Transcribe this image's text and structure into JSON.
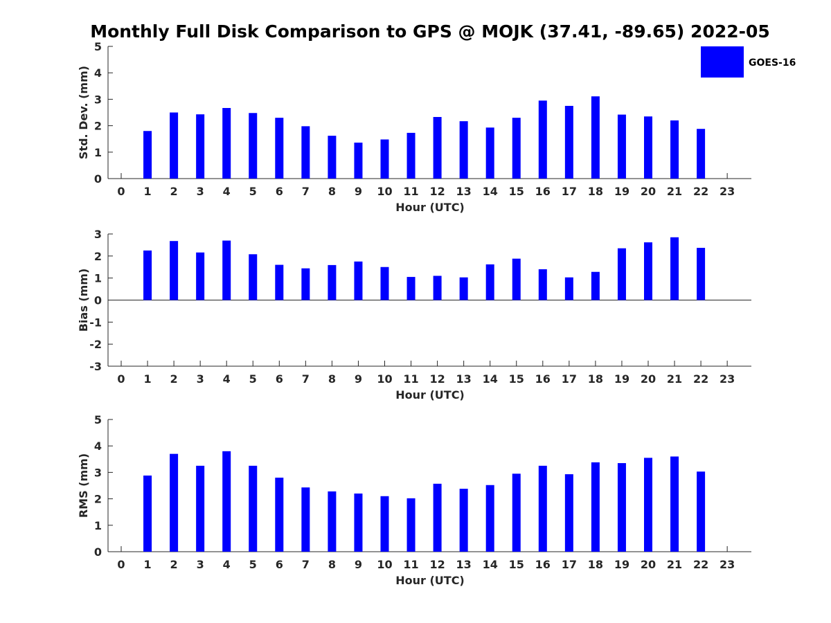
{
  "figure": {
    "title": "Monthly Full Disk Comparison to GPS @ MOJK (37.41, -89.65) 2022-05"
  },
  "legend": {
    "label": "GOES-16",
    "color": "#0000ff",
    "placement": "top-right"
  },
  "chart_data": [
    {
      "type": "bar",
      "title": "",
      "xlabel": "Hour (UTC)",
      "ylabel": "Std. Dev. (mm)",
      "categories": [
        "0",
        "1",
        "2",
        "3",
        "4",
        "5",
        "6",
        "7",
        "8",
        "9",
        "10",
        "11",
        "12",
        "13",
        "14",
        "15",
        "16",
        "17",
        "18",
        "19",
        "20",
        "21",
        "22",
        "23"
      ],
      "ylim": [
        0,
        5
      ],
      "yticks": [
        0,
        1,
        2,
        3,
        4,
        5
      ],
      "series": [
        {
          "name": "GOES-16",
          "color": "#0000ff",
          "values": [
            null,
            1.8,
            2.5,
            2.43,
            2.67,
            2.48,
            2.3,
            1.98,
            1.62,
            1.36,
            1.48,
            1.73,
            2.33,
            2.17,
            1.93,
            2.3,
            2.95,
            2.75,
            3.11,
            2.42,
            2.35,
            2.2,
            1.88,
            null
          ]
        }
      ],
      "grid": false
    },
    {
      "type": "bar",
      "title": "",
      "xlabel": "Hour (UTC)",
      "ylabel": "Bias (mm)",
      "categories": [
        "0",
        "1",
        "2",
        "3",
        "4",
        "5",
        "6",
        "7",
        "8",
        "9",
        "10",
        "11",
        "12",
        "13",
        "14",
        "15",
        "16",
        "17",
        "18",
        "19",
        "20",
        "21",
        "22",
        "23"
      ],
      "ylim": [
        -3,
        3
      ],
      "yticks": [
        -3,
        -2,
        -1,
        0,
        1,
        2,
        3
      ],
      "zero_line": true,
      "series": [
        {
          "name": "GOES-16",
          "color": "#0000ff",
          "values": [
            null,
            2.25,
            2.68,
            2.16,
            2.7,
            2.08,
            1.6,
            1.44,
            1.59,
            1.75,
            1.5,
            1.05,
            1.1,
            1.03,
            1.62,
            1.88,
            1.4,
            1.03,
            1.28,
            2.35,
            2.62,
            2.85,
            2.37,
            null
          ]
        }
      ],
      "grid": false
    },
    {
      "type": "bar",
      "title": "",
      "xlabel": "Hour (UTC)",
      "ylabel": "RMS (mm)",
      "categories": [
        "0",
        "1",
        "2",
        "3",
        "4",
        "5",
        "6",
        "7",
        "8",
        "9",
        "10",
        "11",
        "12",
        "13",
        "14",
        "15",
        "16",
        "17",
        "18",
        "19",
        "20",
        "21",
        "22",
        "23"
      ],
      "ylim": [
        0,
        5
      ],
      "yticks": [
        0,
        1,
        2,
        3,
        4,
        5
      ],
      "series": [
        {
          "name": "GOES-16",
          "color": "#0000ff",
          "values": [
            null,
            2.88,
            3.7,
            3.25,
            3.8,
            3.25,
            2.8,
            2.43,
            2.28,
            2.2,
            2.1,
            2.02,
            2.57,
            2.38,
            2.52,
            2.95,
            3.25,
            2.93,
            3.38,
            3.35,
            3.55,
            3.6,
            3.03,
            null
          ]
        }
      ],
      "grid": false
    }
  ]
}
